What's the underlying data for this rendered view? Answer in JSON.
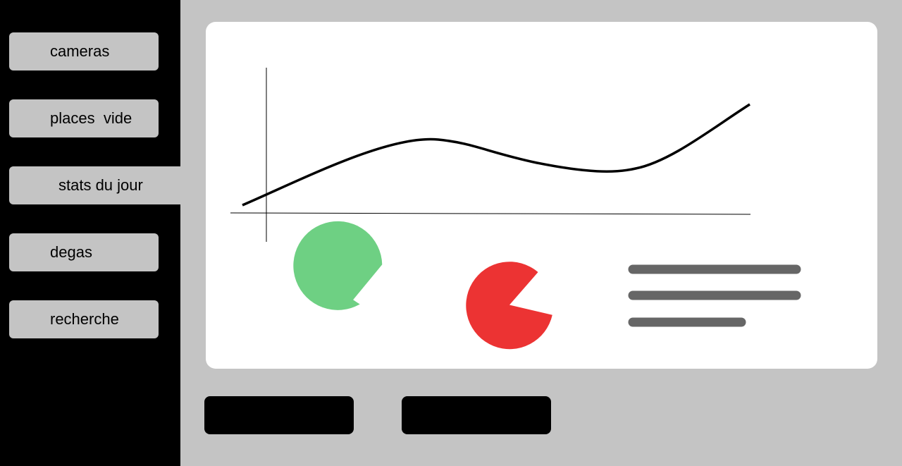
{
  "sidebar": {
    "items": [
      {
        "label": "cameras",
        "active": false
      },
      {
        "label": "places  vide",
        "active": false
      },
      {
        "label": "stats du jour",
        "active": true
      },
      {
        "label": "degas",
        "active": false
      },
      {
        "label": "recherche",
        "active": false
      }
    ]
  },
  "colors": {
    "sidebar_bg": "#000000",
    "content_bg": "#c4c4c4",
    "card_bg": "#ffffff",
    "pie_green": "#6ed083",
    "pie_red": "#ec3333",
    "text_line_gray": "#666666"
  },
  "card": {
    "line_chart": {
      "type": "line",
      "shape": "hand-drawn curve sketch, no labels"
    },
    "pies": [
      {
        "name": "pie-green",
        "color": "#6ed083"
      },
      {
        "name": "pie-red",
        "color": "#ec3333"
      }
    ],
    "text_placeholder_lines": 3
  },
  "actions": [
    {
      "name": "action-button-1",
      "label": ""
    },
    {
      "name": "action-button-2",
      "label": ""
    }
  ]
}
